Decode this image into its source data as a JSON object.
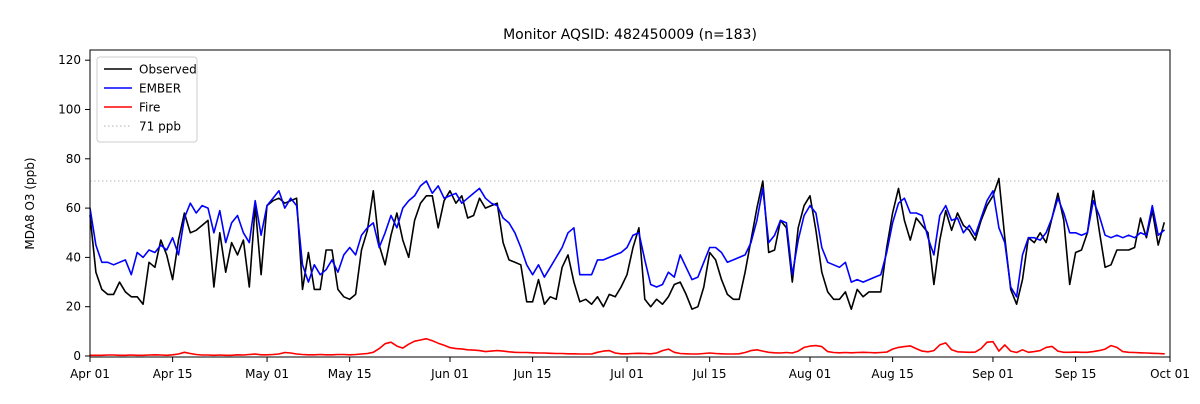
{
  "title": "Monitor AQSID: 482450009 (n=183)",
  "chart_data": {
    "type": "line",
    "title": "Monitor AQSID: 482450009 (n=183)",
    "xlabel": "",
    "ylabel": "MDA8 O3 (ppb)",
    "x_unit": "date (daily, Apr 01 - Sep 30)",
    "n_points": 183,
    "ylim": [
      0,
      124
    ],
    "yticks": [
      0,
      20,
      40,
      60,
      80,
      100,
      120
    ],
    "xtick_labels": [
      "Apr 01",
      "Apr 15",
      "May 01",
      "May 15",
      "Jun 01",
      "Jun 15",
      "Jul 01",
      "Jul 15",
      "Aug 01",
      "Aug 15",
      "Sep 01",
      "Sep 15",
      "Oct 01"
    ],
    "xtick_days": [
      0,
      14,
      30,
      44,
      61,
      75,
      91,
      105,
      122,
      136,
      153,
      167,
      183
    ],
    "x_range_days": [
      0,
      183
    ],
    "grid": false,
    "legend_position": "upper left",
    "reference_line": {
      "label": "71 ppb",
      "value": 71,
      "color": "#c8c8c8",
      "style": "dotted"
    },
    "legend_items": [
      {
        "label": "Observed",
        "color": "#000000",
        "dash": false
      },
      {
        "label": "EMBER",
        "color": "#0000ff",
        "dash": false
      },
      {
        "label": "Fire",
        "color": "#ff0000",
        "dash": false
      },
      {
        "label": "71 ppb",
        "color": "#c8c8c8",
        "dash": true
      }
    ],
    "series": [
      {
        "name": "Observed",
        "color": "#000000",
        "values": [
          57,
          34,
          27,
          25,
          25,
          30,
          26,
          24,
          24,
          21,
          38,
          36,
          47,
          41,
          31,
          47,
          58,
          50,
          51,
          53,
          55,
          28,
          50,
          34,
          46,
          41,
          47,
          28,
          61,
          33,
          61,
          63,
          64,
          62,
          63,
          64,
          27,
          42,
          27,
          27,
          43,
          43,
          27,
          24,
          23,
          25,
          43,
          51,
          67,
          45,
          37,
          49,
          58,
          47,
          40,
          55,
          62,
          65,
          65,
          52,
          63,
          67,
          62,
          65,
          56,
          57,
          64,
          60,
          61,
          62,
          46,
          39,
          38,
          37,
          22,
          22,
          31,
          21,
          24,
          23,
          36,
          41,
          30,
          22,
          23,
          21,
          24,
          20,
          25,
          24,
          28,
          33,
          44,
          52,
          23,
          20,
          23,
          21,
          24,
          29,
          30,
          25,
          19,
          20,
          28,
          42,
          39,
          31,
          25,
          23,
          23,
          34,
          47,
          60,
          71,
          42,
          43,
          55,
          52,
          30,
          52,
          61,
          65,
          51,
          34,
          26,
          23,
          23,
          26,
          19,
          27,
          24,
          26,
          26,
          26,
          44,
          58,
          68,
          55,
          47,
          56,
          53,
          50,
          29,
          47,
          59,
          51,
          58,
          53,
          51,
          47,
          55,
          61,
          65,
          72,
          48,
          27,
          21,
          31,
          48,
          46,
          50,
          46,
          56,
          66,
          55,
          29,
          42,
          43,
          50,
          67,
          51,
          36,
          37,
          43,
          43,
          43,
          44,
          56,
          48,
          59,
          45,
          54
        ]
      },
      {
        "name": "EMBER",
        "color": "#0000ff",
        "values": [
          60,
          45,
          38,
          38,
          37,
          38,
          39,
          33,
          42,
          40,
          43,
          42,
          45,
          43,
          48,
          41,
          56,
          62,
          58,
          61,
          60,
          50,
          59,
          46,
          54,
          57,
          50,
          46,
          63,
          49,
          61,
          64,
          67,
          60,
          64,
          61,
          37,
          30,
          37,
          33,
          35,
          39,
          34,
          41,
          44,
          41,
          49,
          52,
          54,
          44,
          50,
          57,
          52,
          60,
          63,
          65,
          69,
          71,
          66,
          69,
          64,
          65,
          66,
          62,
          64,
          66,
          68,
          64,
          62,
          61,
          56,
          54,
          50,
          44,
          37,
          33,
          37,
          32,
          36,
          40,
          44,
          50,
          52,
          33,
          33,
          33,
          39,
          39,
          40,
          41,
          42,
          44,
          49,
          50,
          39,
          29,
          28,
          29,
          34,
          32,
          41,
          36,
          31,
          32,
          38,
          44,
          44,
          42,
          38,
          39,
          40,
          41,
          46,
          55,
          68,
          46,
          49,
          55,
          54,
          33,
          47,
          57,
          61,
          58,
          44,
          38,
          37,
          36,
          38,
          30,
          31,
          30,
          31,
          32,
          33,
          42,
          54,
          62,
          64,
          58,
          58,
          57,
          48,
          41,
          57,
          61,
          55,
          56,
          50,
          53,
          49,
          56,
          63,
          67,
          52,
          46,
          28,
          24,
          41,
          48,
          48,
          47,
          50,
          56,
          64,
          58,
          50,
          50,
          49,
          50,
          63,
          57,
          49,
          48,
          49,
          48,
          49,
          48,
          50,
          49,
          61,
          49,
          51
        ]
      },
      {
        "name": "Fire",
        "color": "#ff0000",
        "values": [
          0.3,
          0.3,
          0.3,
          0.4,
          0.4,
          0.3,
          0.3,
          0.4,
          0.3,
          0.3,
          0.4,
          0.5,
          0.4,
          0.3,
          0.5,
          0.8,
          1.5,
          1.0,
          0.6,
          0.4,
          0.4,
          0.3,
          0.4,
          0.3,
          0.3,
          0.5,
          0.4,
          0.6,
          0.8,
          0.5,
          0.5,
          0.6,
          0.8,
          1.4,
          1.2,
          0.8,
          0.6,
          0.5,
          0.5,
          0.6,
          0.5,
          0.5,
          0.6,
          0.6,
          0.5,
          0.6,
          0.8,
          1.0,
          1.5,
          3.0,
          5.0,
          5.6,
          4.0,
          3.2,
          4.8,
          6.0,
          6.5,
          7.0,
          6.2,
          5.2,
          4.4,
          3.4,
          3.0,
          2.9,
          2.5,
          2.4,
          2.2,
          1.8,
          2.0,
          2.2,
          2.0,
          1.7,
          1.5,
          1.4,
          1.4,
          1.3,
          1.2,
          1.2,
          1.1,
          1.0,
          1.0,
          0.9,
          0.9,
          0.8,
          0.8,
          0.8,
          1.5,
          2.0,
          2.2,
          1.2,
          0.9,
          0.9,
          1.0,
          1.1,
          1.0,
          0.9,
          1.2,
          2.2,
          2.8,
          1.5,
          1.0,
          0.9,
          0.8,
          0.8,
          1.0,
          1.2,
          1.0,
          0.9,
          0.8,
          0.8,
          0.9,
          1.4,
          2.2,
          2.5,
          2.0,
          1.5,
          1.3,
          1.2,
          1.4,
          1.2,
          2.0,
          3.5,
          4.0,
          4.2,
          3.8,
          1.8,
          1.4,
          1.3,
          1.4,
          1.3,
          1.4,
          1.5,
          1.4,
          1.3,
          1.4,
          1.6,
          2.8,
          3.5,
          3.8,
          4.1,
          3.0,
          2.0,
          1.7,
          2.2,
          4.5,
          5.3,
          2.5,
          1.7,
          1.6,
          1.5,
          1.6,
          3.0,
          5.6,
          5.8,
          2.0,
          4.5,
          2.0,
          1.4,
          2.5,
          1.5,
          1.8,
          2.2,
          3.5,
          3.9,
          2.0,
          1.5,
          1.5,
          1.6,
          1.5,
          1.5,
          1.8,
          2.2,
          2.8,
          4.2,
          3.5,
          1.8,
          1.5,
          1.4,
          1.3,
          1.2,
          1.1,
          1.0,
          0.9
        ]
      }
    ]
  }
}
